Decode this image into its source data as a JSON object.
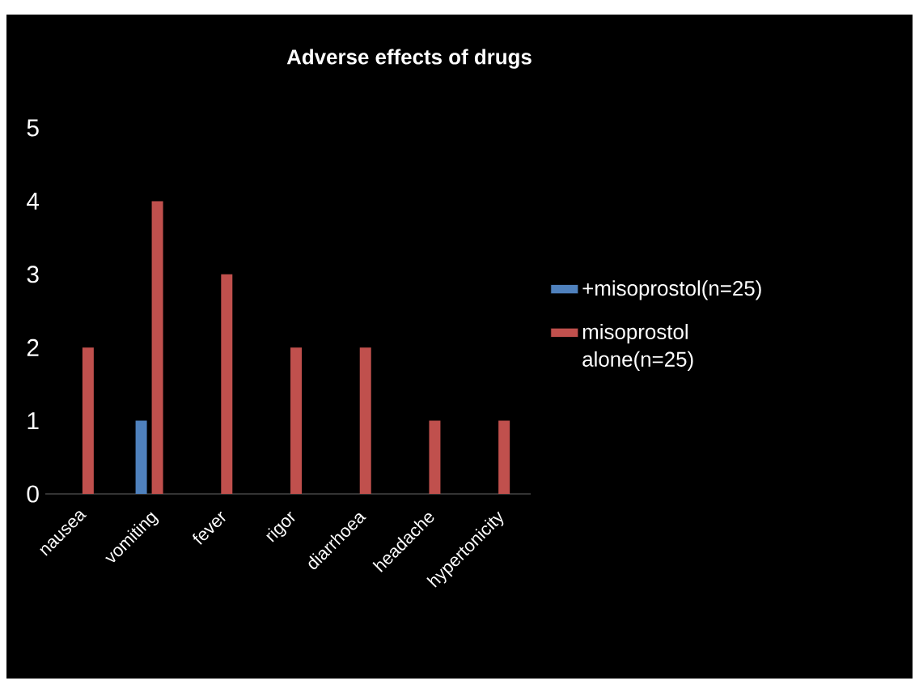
{
  "chart_data": {
    "type": "bar",
    "title": "Adverse effects of drugs",
    "categories": [
      "nausea",
      "vomiting",
      "fever",
      "rigor",
      "diarrhoea",
      "headache",
      "hypertonicity"
    ],
    "series": [
      {
        "name": "+misoprostol(n=25)",
        "color": "#4f81bd",
        "values": [
          0,
          1,
          0,
          0,
          0,
          0,
          0
        ]
      },
      {
        "name": "misoprostol alone(n=25)",
        "color": "#c0504d",
        "values": [
          2,
          4,
          3,
          2,
          2,
          1,
          1
        ]
      }
    ],
    "ylim": [
      0,
      5
    ],
    "yticks": [
      0,
      1,
      2,
      3,
      4,
      5
    ],
    "legend": "right"
  }
}
